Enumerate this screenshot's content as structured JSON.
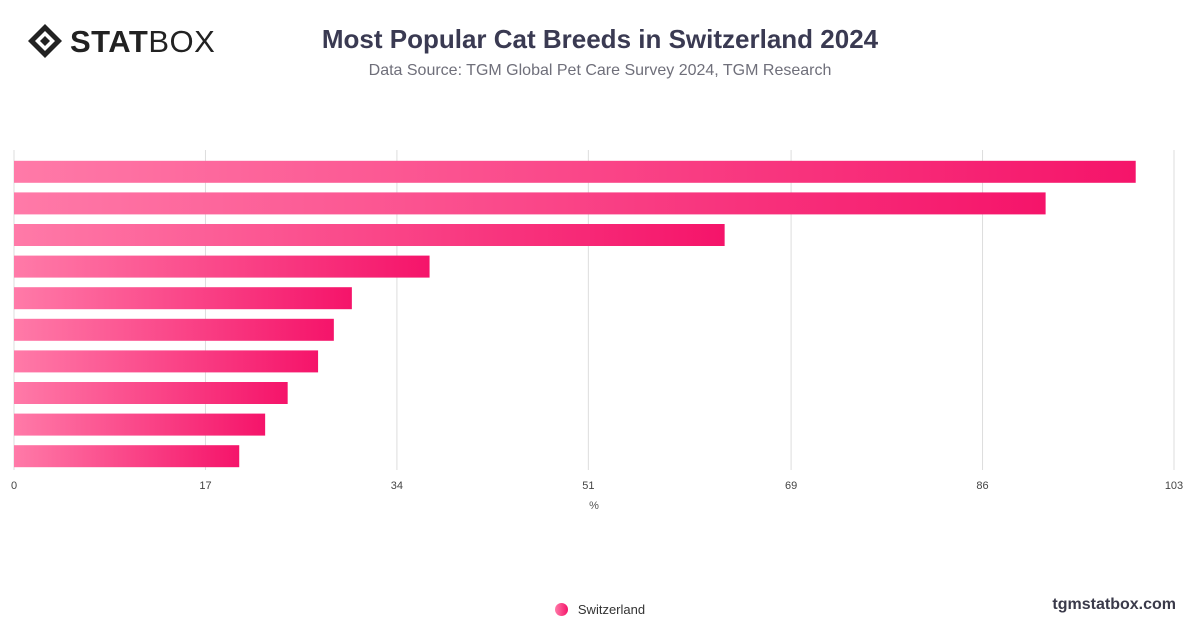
{
  "brand": {
    "logo_bold": "STAT",
    "logo_light": "BOX",
    "footer": "tgmstatbox.com"
  },
  "colors": {
    "bar_start": "#ff7aa8",
    "bar_end": "#f5146a",
    "grid": "#dddddd"
  },
  "chart_data": {
    "type": "bar",
    "orientation": "horizontal",
    "title": "Most Popular Cat Breeds in Switzerland 2024",
    "subtitle": "Data Source: TGM Global Pet Care Survey 2024, TGM Research",
    "xlabel": "%",
    "ylabel": "",
    "xlim": [
      0,
      103
    ],
    "xticks": [
      0,
      17,
      34,
      51,
      69,
      86,
      103
    ],
    "grid": true,
    "legend_position": "bottom-center",
    "series": [
      {
        "name": "Switzerland",
        "values": [
          99.6,
          91.6,
          63.1,
          36.9,
          30.0,
          28.4,
          27.0,
          24.3,
          22.3,
          20.0
        ]
      }
    ]
  }
}
